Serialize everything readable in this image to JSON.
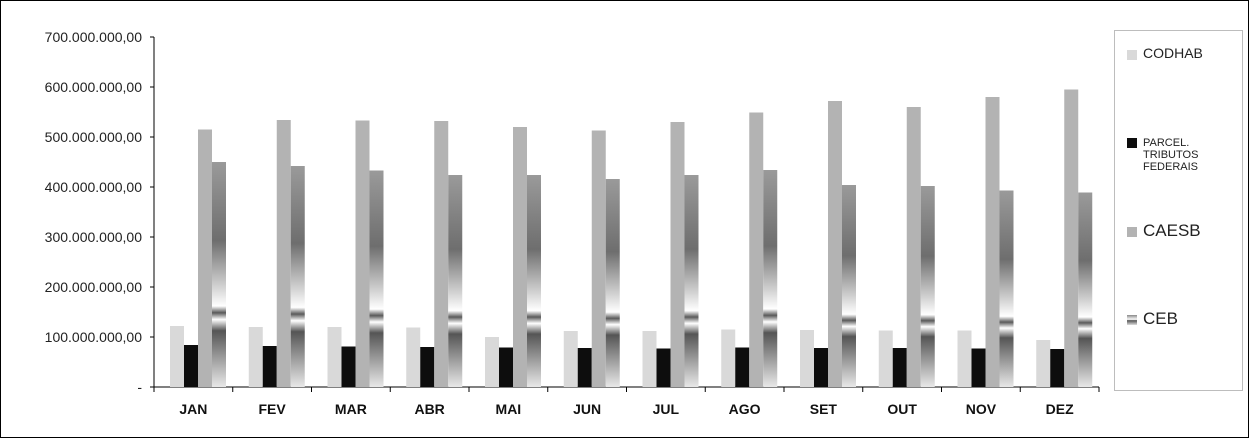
{
  "chart_data": {
    "type": "bar",
    "title": "",
    "xlabel": "",
    "ylabel": "",
    "categories": [
      "JAN",
      "FEV",
      "MAR",
      "ABR",
      "MAI",
      "JUN",
      "JUL",
      "AGO",
      "SET",
      "OUT",
      "NOV",
      "DEZ"
    ],
    "ylim": [
      0,
      700000000
    ],
    "yticks": [
      0,
      100000000,
      200000000,
      300000000,
      400000000,
      500000000,
      600000000,
      700000000
    ],
    "ytick_labels": [
      "-",
      "100.000.000,00",
      "200.000.000,00",
      "300.000.000,00",
      "400.000.000,00",
      "500.000.000,00",
      "600.000.000,00",
      "700.000.000,00"
    ],
    "grid": false,
    "legend_position": "right",
    "series": [
      {
        "name": "CODHAB",
        "color": "#d9d9d9",
        "values": [
          122000000,
          120000000,
          120000000,
          119000000,
          100000000,
          112000000,
          112000000,
          115000000,
          114000000,
          113000000,
          113000000,
          94000000
        ]
      },
      {
        "name": "PARCEL. TRIBUTOS FEDERAIS",
        "color": "#0d0d0d",
        "values": [
          84000000,
          82000000,
          81000000,
          80000000,
          79000000,
          78000000,
          77000000,
          79000000,
          78000000,
          78000000,
          77000000,
          76000000
        ]
      },
      {
        "name": "CAESB",
        "color": "#b3b3b3",
        "values": [
          515000000,
          534000000,
          533000000,
          532000000,
          520000000,
          513000000,
          530000000,
          549000000,
          572000000,
          560000000,
          580000000,
          595000000
        ]
      },
      {
        "name": "CEB",
        "color": "#7f7f7f",
        "values": [
          450000000,
          442000000,
          433000000,
          424000000,
          424000000,
          416000000,
          424000000,
          434000000,
          404000000,
          402000000,
          393000000,
          389000000
        ]
      }
    ]
  },
  "legend": {
    "items": [
      {
        "label": "CODHAB"
      },
      {
        "label_lines": [
          "PARCEL.",
          "TRIBUTOS",
          "FEDERAIS"
        ]
      },
      {
        "label": "CAESB"
      },
      {
        "label": "CEB"
      }
    ]
  }
}
